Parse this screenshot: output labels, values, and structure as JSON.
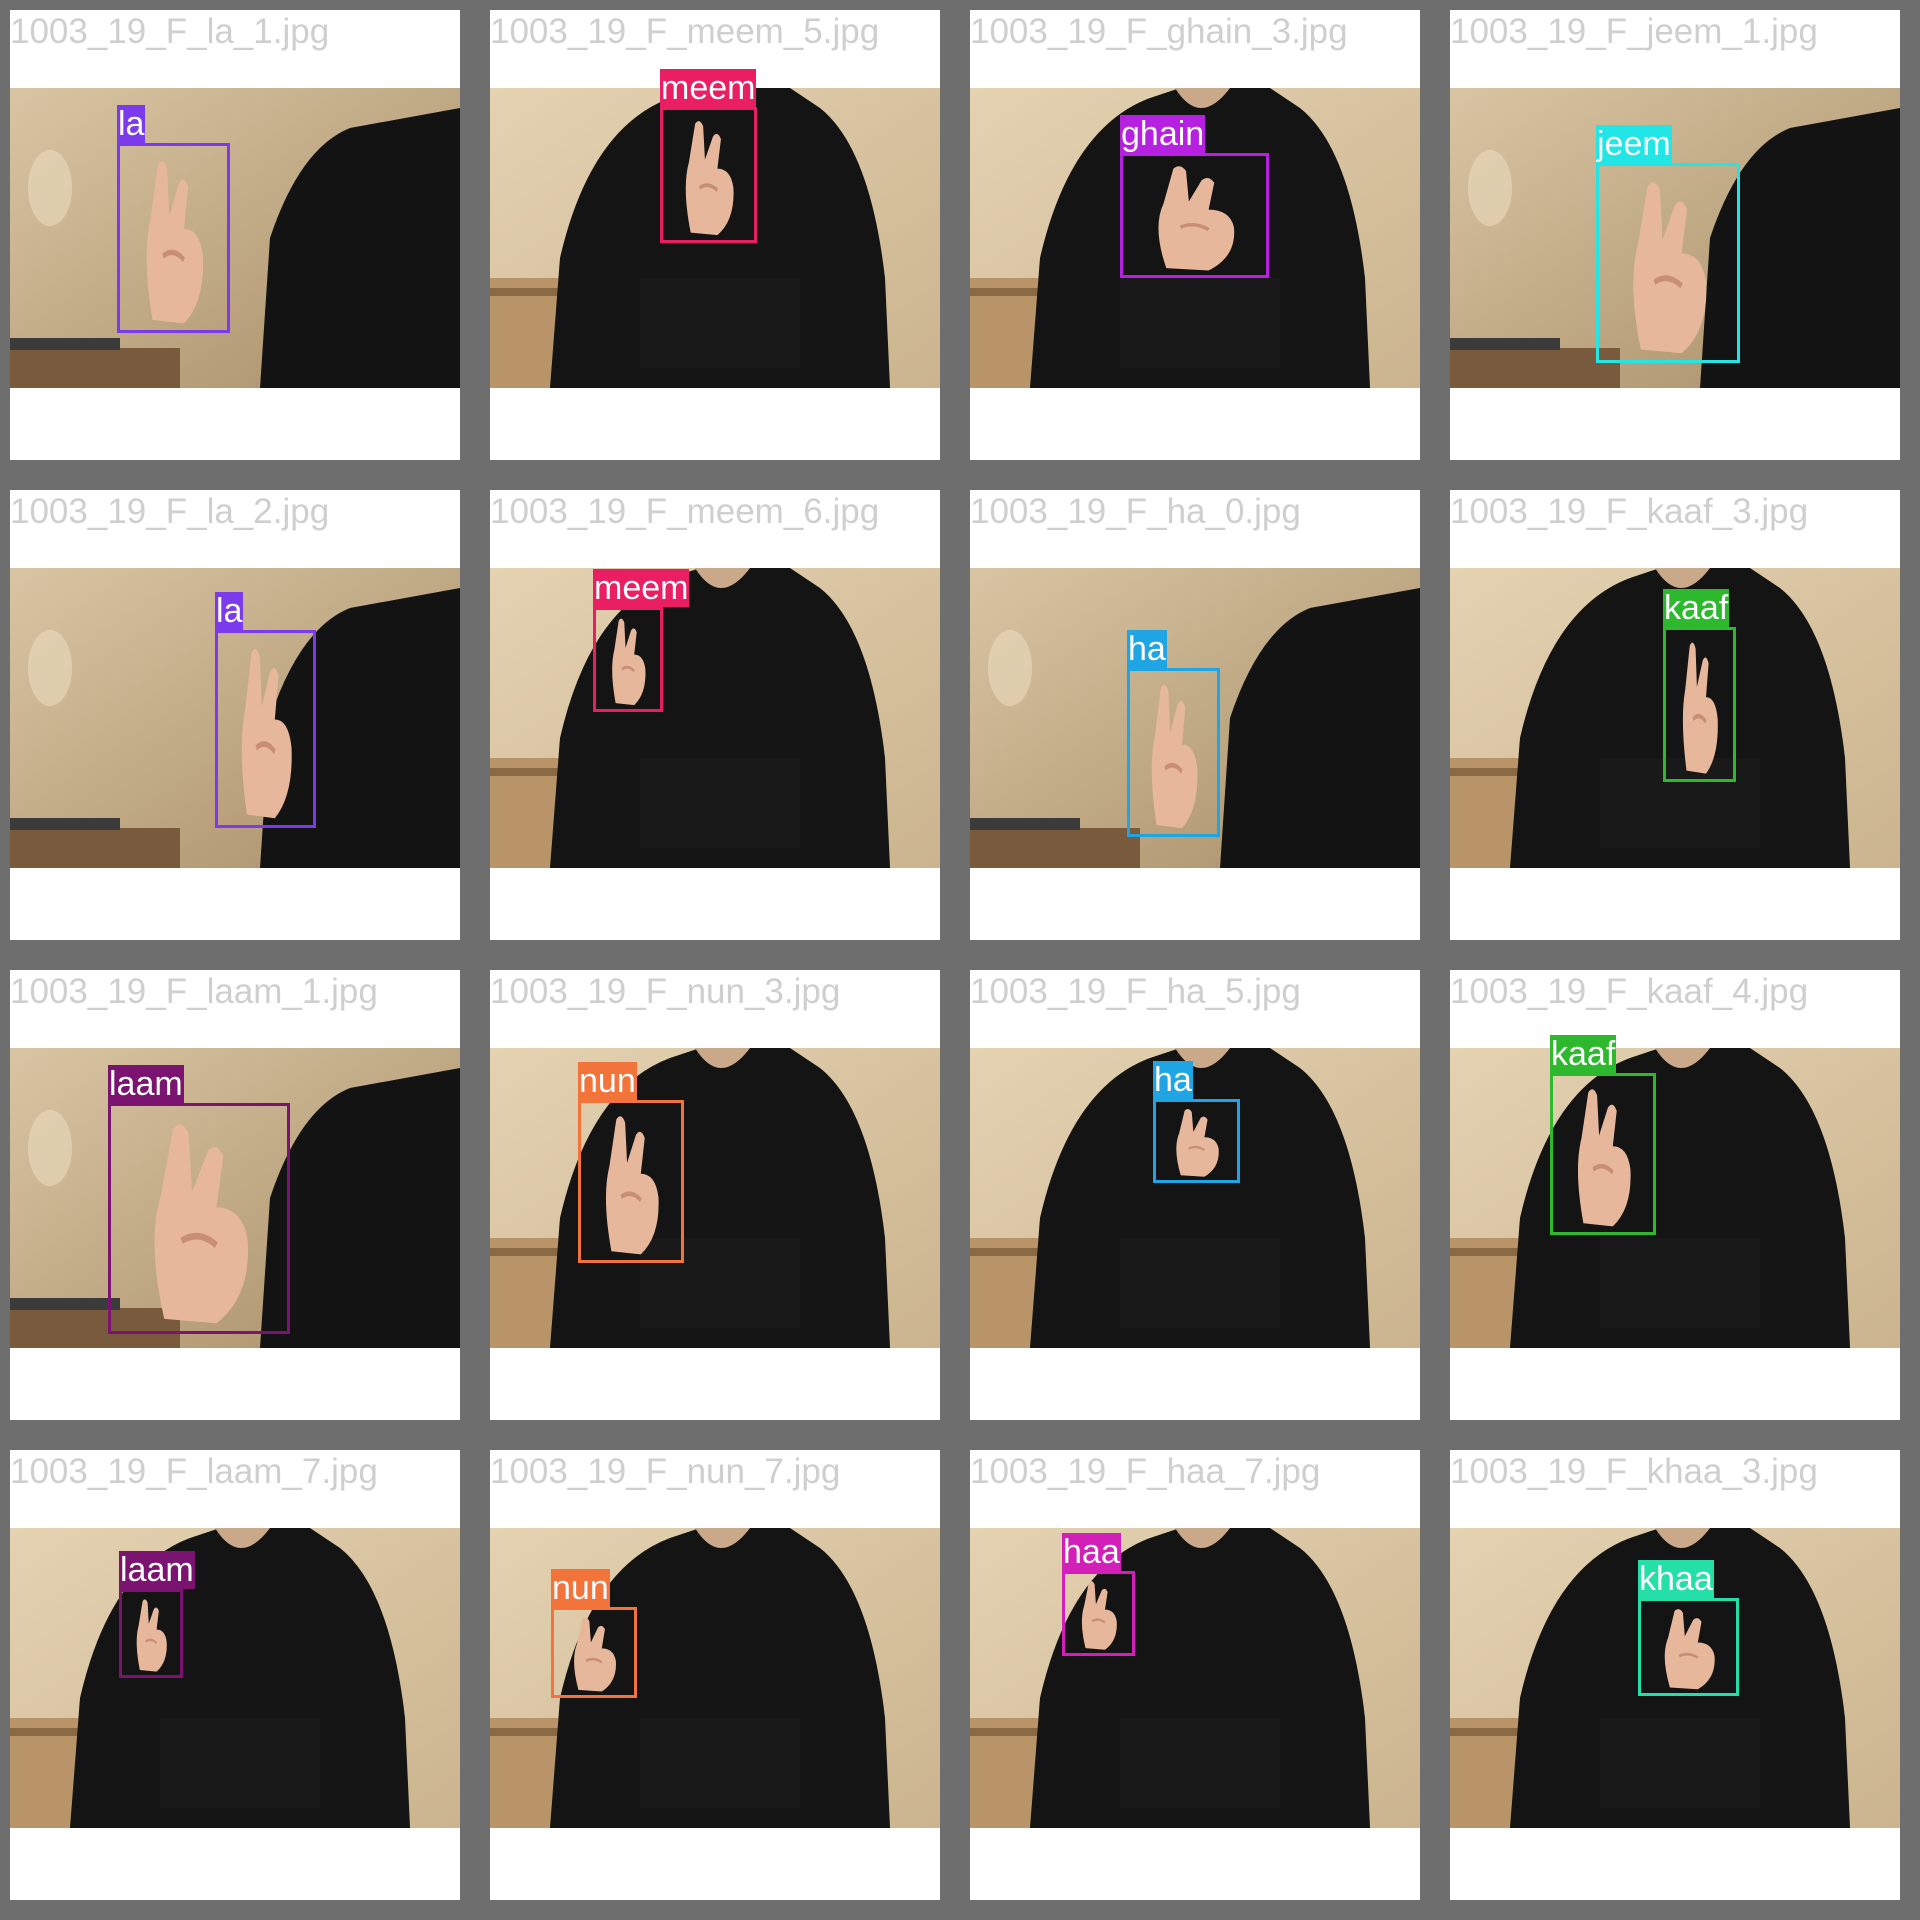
{
  "tiles": [
    {
      "filename": "1003_19_F_la_1.jpg",
      "label": "la",
      "color": "#7c3aed",
      "scene": "wall"
    },
    {
      "filename": "1003_19_F_meem_5.jpg",
      "label": "meem",
      "color": "#e91e63",
      "scene": "hoodie"
    },
    {
      "filename": "1003_19_F_ghain_3.jpg",
      "label": "ghain",
      "color": "#b620e0",
      "scene": "hoodie"
    },
    {
      "filename": "1003_19_F_jeem_1.jpg",
      "label": "jeem",
      "color": "#22e6e6",
      "scene": "wall"
    },
    {
      "filename": "1003_19_F_la_2.jpg",
      "label": "la",
      "color": "#7c3aed",
      "scene": "wall"
    },
    {
      "filename": "1003_19_F_meem_6.jpg",
      "label": "meem",
      "color": "#e91e63",
      "scene": "hoodie"
    },
    {
      "filename": "1003_19_F_ha_0.jpg",
      "label": "ha",
      "color": "#1fa5e3",
      "scene": "wall"
    },
    {
      "filename": "1003_19_F_kaaf_3.jpg",
      "label": "kaaf",
      "color": "#2eb82e",
      "scene": "hoodie"
    },
    {
      "filename": "1003_19_F_laam_1.jpg",
      "label": "laam",
      "color": "#7a1470",
      "scene": "wall"
    },
    {
      "filename": "1003_19_F_nun_3.jpg",
      "label": "nun",
      "color": "#f2743a",
      "scene": "hoodie"
    },
    {
      "filename": "1003_19_F_ha_5.jpg",
      "label": "ha",
      "color": "#1fa5e3",
      "scene": "hoodie"
    },
    {
      "filename": "1003_19_F_kaaf_4.jpg",
      "label": "kaaf",
      "color": "#2eb82e",
      "scene": "hoodie"
    },
    {
      "filename": "1003_19_F_laam_7.jpg",
      "label": "laam",
      "color": "#7a1470",
      "scene": "hoodie"
    },
    {
      "filename": "1003_19_F_nun_7.jpg",
      "label": "nun",
      "color": "#f2743a",
      "scene": "hoodie"
    },
    {
      "filename": "1003_19_F_haa_7.jpg",
      "label": "haa",
      "color": "#d21fb8",
      "scene": "hoodie"
    },
    {
      "filename": "1003_19_F_khaa_3.jpg",
      "label": "khaa",
      "color": "#24e0a8",
      "scene": "hoodie"
    }
  ]
}
